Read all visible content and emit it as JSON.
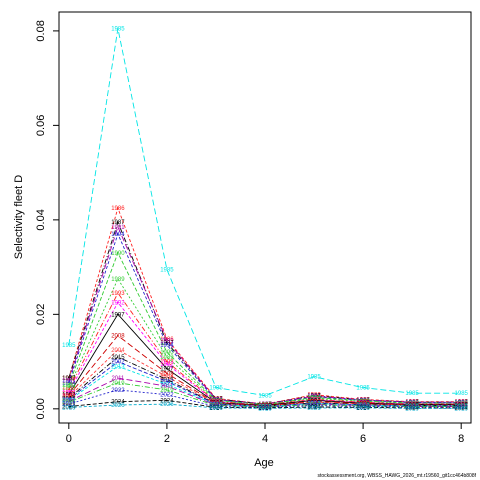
{
  "chart_data": {
    "type": "line",
    "xlabel": "Age",
    "ylabel": "Selectivity fleet D",
    "footnote": "stockassessment.org, WBSS_HAWG_2026_mt.r19560_git1cc464b808f",
    "xlim": [
      -0.2,
      8.2
    ],
    "ylim": [
      -0.003,
      0.084
    ],
    "x_ticks": [
      0,
      2,
      4,
      6,
      8
    ],
    "y_ticks": [
      0.0,
      0.02,
      0.04,
      0.06,
      0.08
    ],
    "y_tick_labels": [
      "0.00",
      "0.02",
      "0.04",
      "0.06",
      "0.08"
    ],
    "grid": false,
    "legend": "none",
    "x": [
      0,
      1,
      2,
      3,
      4,
      5,
      6,
      7,
      8
    ],
    "series": [
      {
        "name": "1985",
        "color": "#00e5e5",
        "dash": "6,3",
        "values": [
          0.0135,
          0.0805,
          0.0295,
          0.0045,
          0.0028,
          0.0068,
          0.0045,
          0.0033,
          0.0033
        ]
      },
      {
        "name": "1986",
        "color": "#ff2020",
        "dash": "3,2",
        "values": [
          0.0065,
          0.0425,
          0.0148,
          0.0022,
          0.001,
          0.003,
          0.002,
          0.0015,
          0.0015
        ]
      },
      {
        "name": "1987",
        "color": "#000000",
        "dash": "5,2,1,2",
        "values": [
          0.0065,
          0.0395,
          0.014,
          0.0021,
          0.001,
          0.0028,
          0.0019,
          0.0014,
          0.0014
        ]
      },
      {
        "name": "1991",
        "color": "#aa00aa",
        "dash": "6,3",
        "values": [
          0.006,
          0.0385,
          0.0145,
          0.002,
          0.001,
          0.0027,
          0.0019,
          0.0014,
          0.0014
        ]
      },
      {
        "name": "1994",
        "color": "#2222cc",
        "dash": "3,2",
        "values": [
          0.0055,
          0.037,
          0.0135,
          0.0019,
          0.0009,
          0.0025,
          0.0018,
          0.0013,
          0.0013
        ]
      },
      {
        "name": "1990",
        "color": "#33cc33",
        "dash": "4,2",
        "values": [
          0.005,
          0.033,
          0.012,
          0.0018,
          0.0009,
          0.0024,
          0.0017,
          0.0012,
          0.0012
        ]
      },
      {
        "name": "1989",
        "color": "#33cc33",
        "dash": "2,2",
        "values": [
          0.0045,
          0.0275,
          0.011,
          0.0016,
          0.0008,
          0.0022,
          0.0015,
          0.0011,
          0.0011
        ]
      },
      {
        "name": "1993",
        "color": "#ff2020",
        "dash": "5,2,1,2",
        "values": [
          0.004,
          0.0245,
          0.01,
          0.0015,
          0.0008,
          0.002,
          0.0014,
          0.001,
          0.001
        ]
      },
      {
        "name": "1992",
        "color": "#ff00ff",
        "dash": "3,2",
        "values": [
          0.0035,
          0.0225,
          0.0095,
          0.0014,
          0.0007,
          0.0019,
          0.0013,
          0.001,
          0.001
        ]
      },
      {
        "name": "1997",
        "color": "#000000",
        "dash": "",
        "values": [
          0.003,
          0.02,
          0.0085,
          0.0013,
          0.0007,
          0.0018,
          0.0012,
          0.0009,
          0.0009
        ]
      },
      {
        "name": "2008",
        "color": "#cc0000",
        "dash": "6,3",
        "values": [
          0.0028,
          0.0155,
          0.0075,
          0.0012,
          0.0006,
          0.0016,
          0.0011,
          0.0008,
          0.0008
        ]
      },
      {
        "name": "2004",
        "color": "#ff4040",
        "dash": "3,2",
        "values": [
          0.0025,
          0.0125,
          0.0068,
          0.0011,
          0.0006,
          0.0014,
          0.001,
          0.0007,
          0.0007
        ]
      },
      {
        "name": "2015",
        "color": "#000000",
        "dash": "5,2,1,2",
        "values": [
          0.0022,
          0.011,
          0.0062,
          0.001,
          0.0005,
          0.0013,
          0.0009,
          0.0007,
          0.0007
        ]
      },
      {
        "name": "2002",
        "color": "#2222cc",
        "dash": "4,2",
        "values": [
          0.002,
          0.01,
          0.0058,
          0.001,
          0.0005,
          0.0012,
          0.0008,
          0.0006,
          0.0006
        ]
      },
      {
        "name": "2013",
        "color": "#00e5e5",
        "dash": "3,2",
        "values": [
          0.0018,
          0.009,
          0.0052,
          0.0009,
          0.0005,
          0.0011,
          0.0008,
          0.0006,
          0.0006
        ]
      },
      {
        "name": "2011",
        "color": "#aa00aa",
        "dash": "6,3",
        "values": [
          0.0016,
          0.0065,
          0.0048,
          0.0008,
          0.0004,
          0.001,
          0.0007,
          0.0005,
          0.0005
        ]
      },
      {
        "name": "2019",
        "color": "#33cc33",
        "dash": "5,2,1,2",
        "values": [
          0.0014,
          0.0055,
          0.004,
          0.0007,
          0.0004,
          0.0009,
          0.0006,
          0.0005,
          0.0005
        ]
      },
      {
        "name": "2022",
        "color": "#2222cc",
        "dash": "2,2",
        "values": [
          0.001,
          0.004,
          0.003,
          0.0005,
          0.0003,
          0.0007,
          0.0005,
          0.0004,
          0.0004
        ]
      },
      {
        "name": "2024",
        "color": "#000000",
        "dash": "4,2",
        "values": [
          0.0005,
          0.0015,
          0.0018,
          0.0003,
          0.0002,
          0.0004,
          0.0003,
          0.0002,
          0.0002
        ]
      },
      {
        "name": "2026",
        "color": "#00aacc",
        "dash": "3,2",
        "values": [
          0.0003,
          0.0008,
          0.001,
          0.0002,
          0.0001,
          0.0002,
          0.0002,
          0.0001,
          0.0001
        ]
      }
    ]
  }
}
